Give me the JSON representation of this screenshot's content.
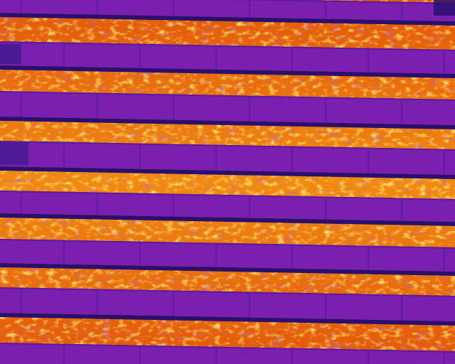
{
  "image": {
    "kind": "thermal-aerial-photo",
    "subject": "solar-panel-rows",
    "palette": {
      "cold": "#3c1a8e",
      "panel": "#7a1fb0",
      "panel_edge": "#5a1aa0",
      "cell_line": "#8a2ab8",
      "gap_dark": "#2a0f6e",
      "ground_mid": "#e2560a",
      "ground_warm": "#f08a12",
      "ground_hot": "#ffc21a",
      "ground_shadow": "#9a2a8a"
    },
    "row_count": 7
  }
}
